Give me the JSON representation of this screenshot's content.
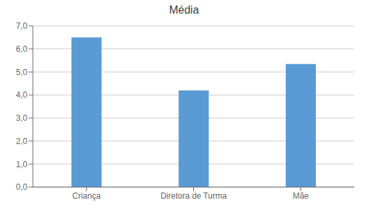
{
  "chart_data": {
    "type": "bar",
    "title": "Média",
    "categories": [
      "Criança",
      "Diretora de Turma",
      "Mãe"
    ],
    "values": [
      6.5,
      4.2,
      5.35
    ],
    "color": "#5B9BD5",
    "ylim": [
      0,
      7.0
    ],
    "yticks": [
      {
        "value": 0.0,
        "label": "0,0"
      },
      {
        "value": 1.0,
        "label": "1,0"
      },
      {
        "value": 2.0,
        "label": "2,0"
      },
      {
        "value": 3.0,
        "label": "3,0"
      },
      {
        "value": 4.0,
        "label": "4,0"
      },
      {
        "value": 5.0,
        "label": "5,0"
      },
      {
        "value": 6.0,
        "label": "6,0"
      },
      {
        "value": 7.0,
        "label": "7,0"
      }
    ],
    "grid": true
  }
}
